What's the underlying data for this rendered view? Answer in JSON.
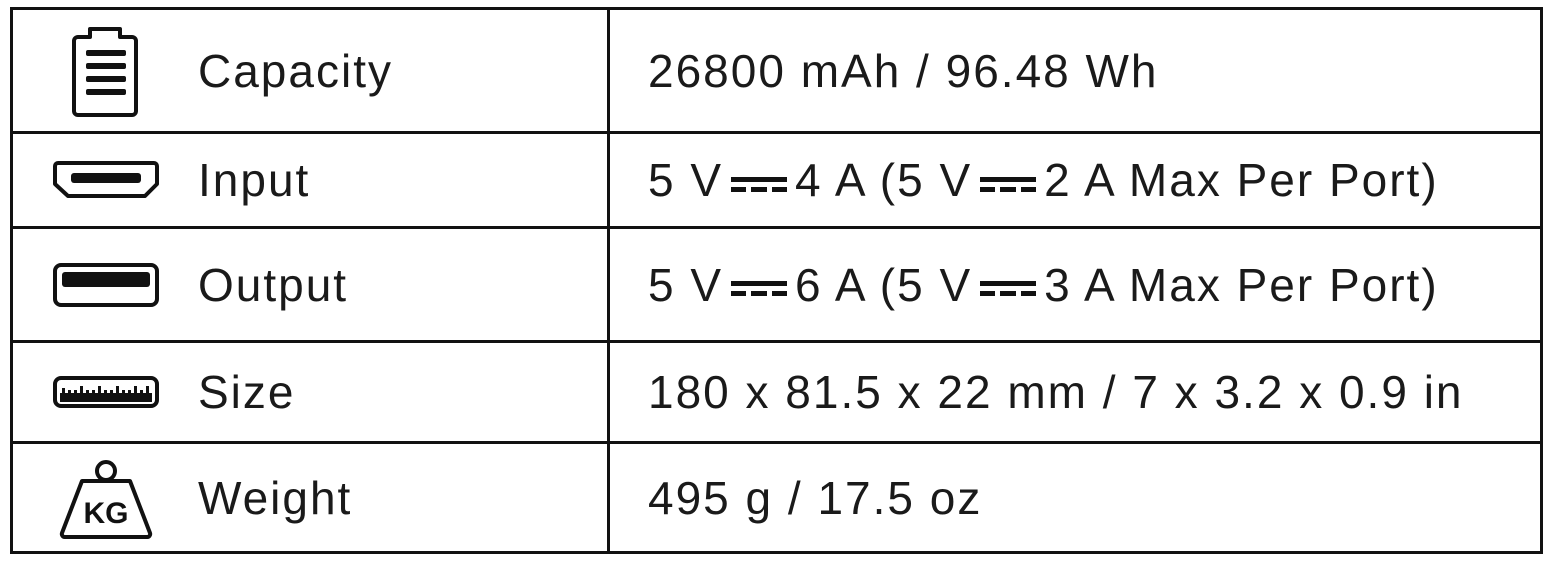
{
  "rows": [
    {
      "icon": "battery-icon",
      "label": "Capacity",
      "value": "26800 mAh / 96.48 Wh"
    },
    {
      "icon": "hdmi-port-icon",
      "label": "Input",
      "value_parts": [
        "5 V",
        "4 A (5 V",
        "2 A Max Per Port)"
      ]
    },
    {
      "icon": "usb-port-icon",
      "label": "Output",
      "value_parts": [
        "5 V",
        "6 A (5 V",
        "3 A Max Per Port)"
      ]
    },
    {
      "icon": "ruler-icon",
      "label": "Size",
      "value": "180 x 81.5 x 22 mm / 7 x 3.2 x 0.9 in"
    },
    {
      "icon": "kg-weight-icon",
      "label": "Weight",
      "value": "495 g / 17.5 oz",
      "icon_text": "KG"
    }
  ]
}
